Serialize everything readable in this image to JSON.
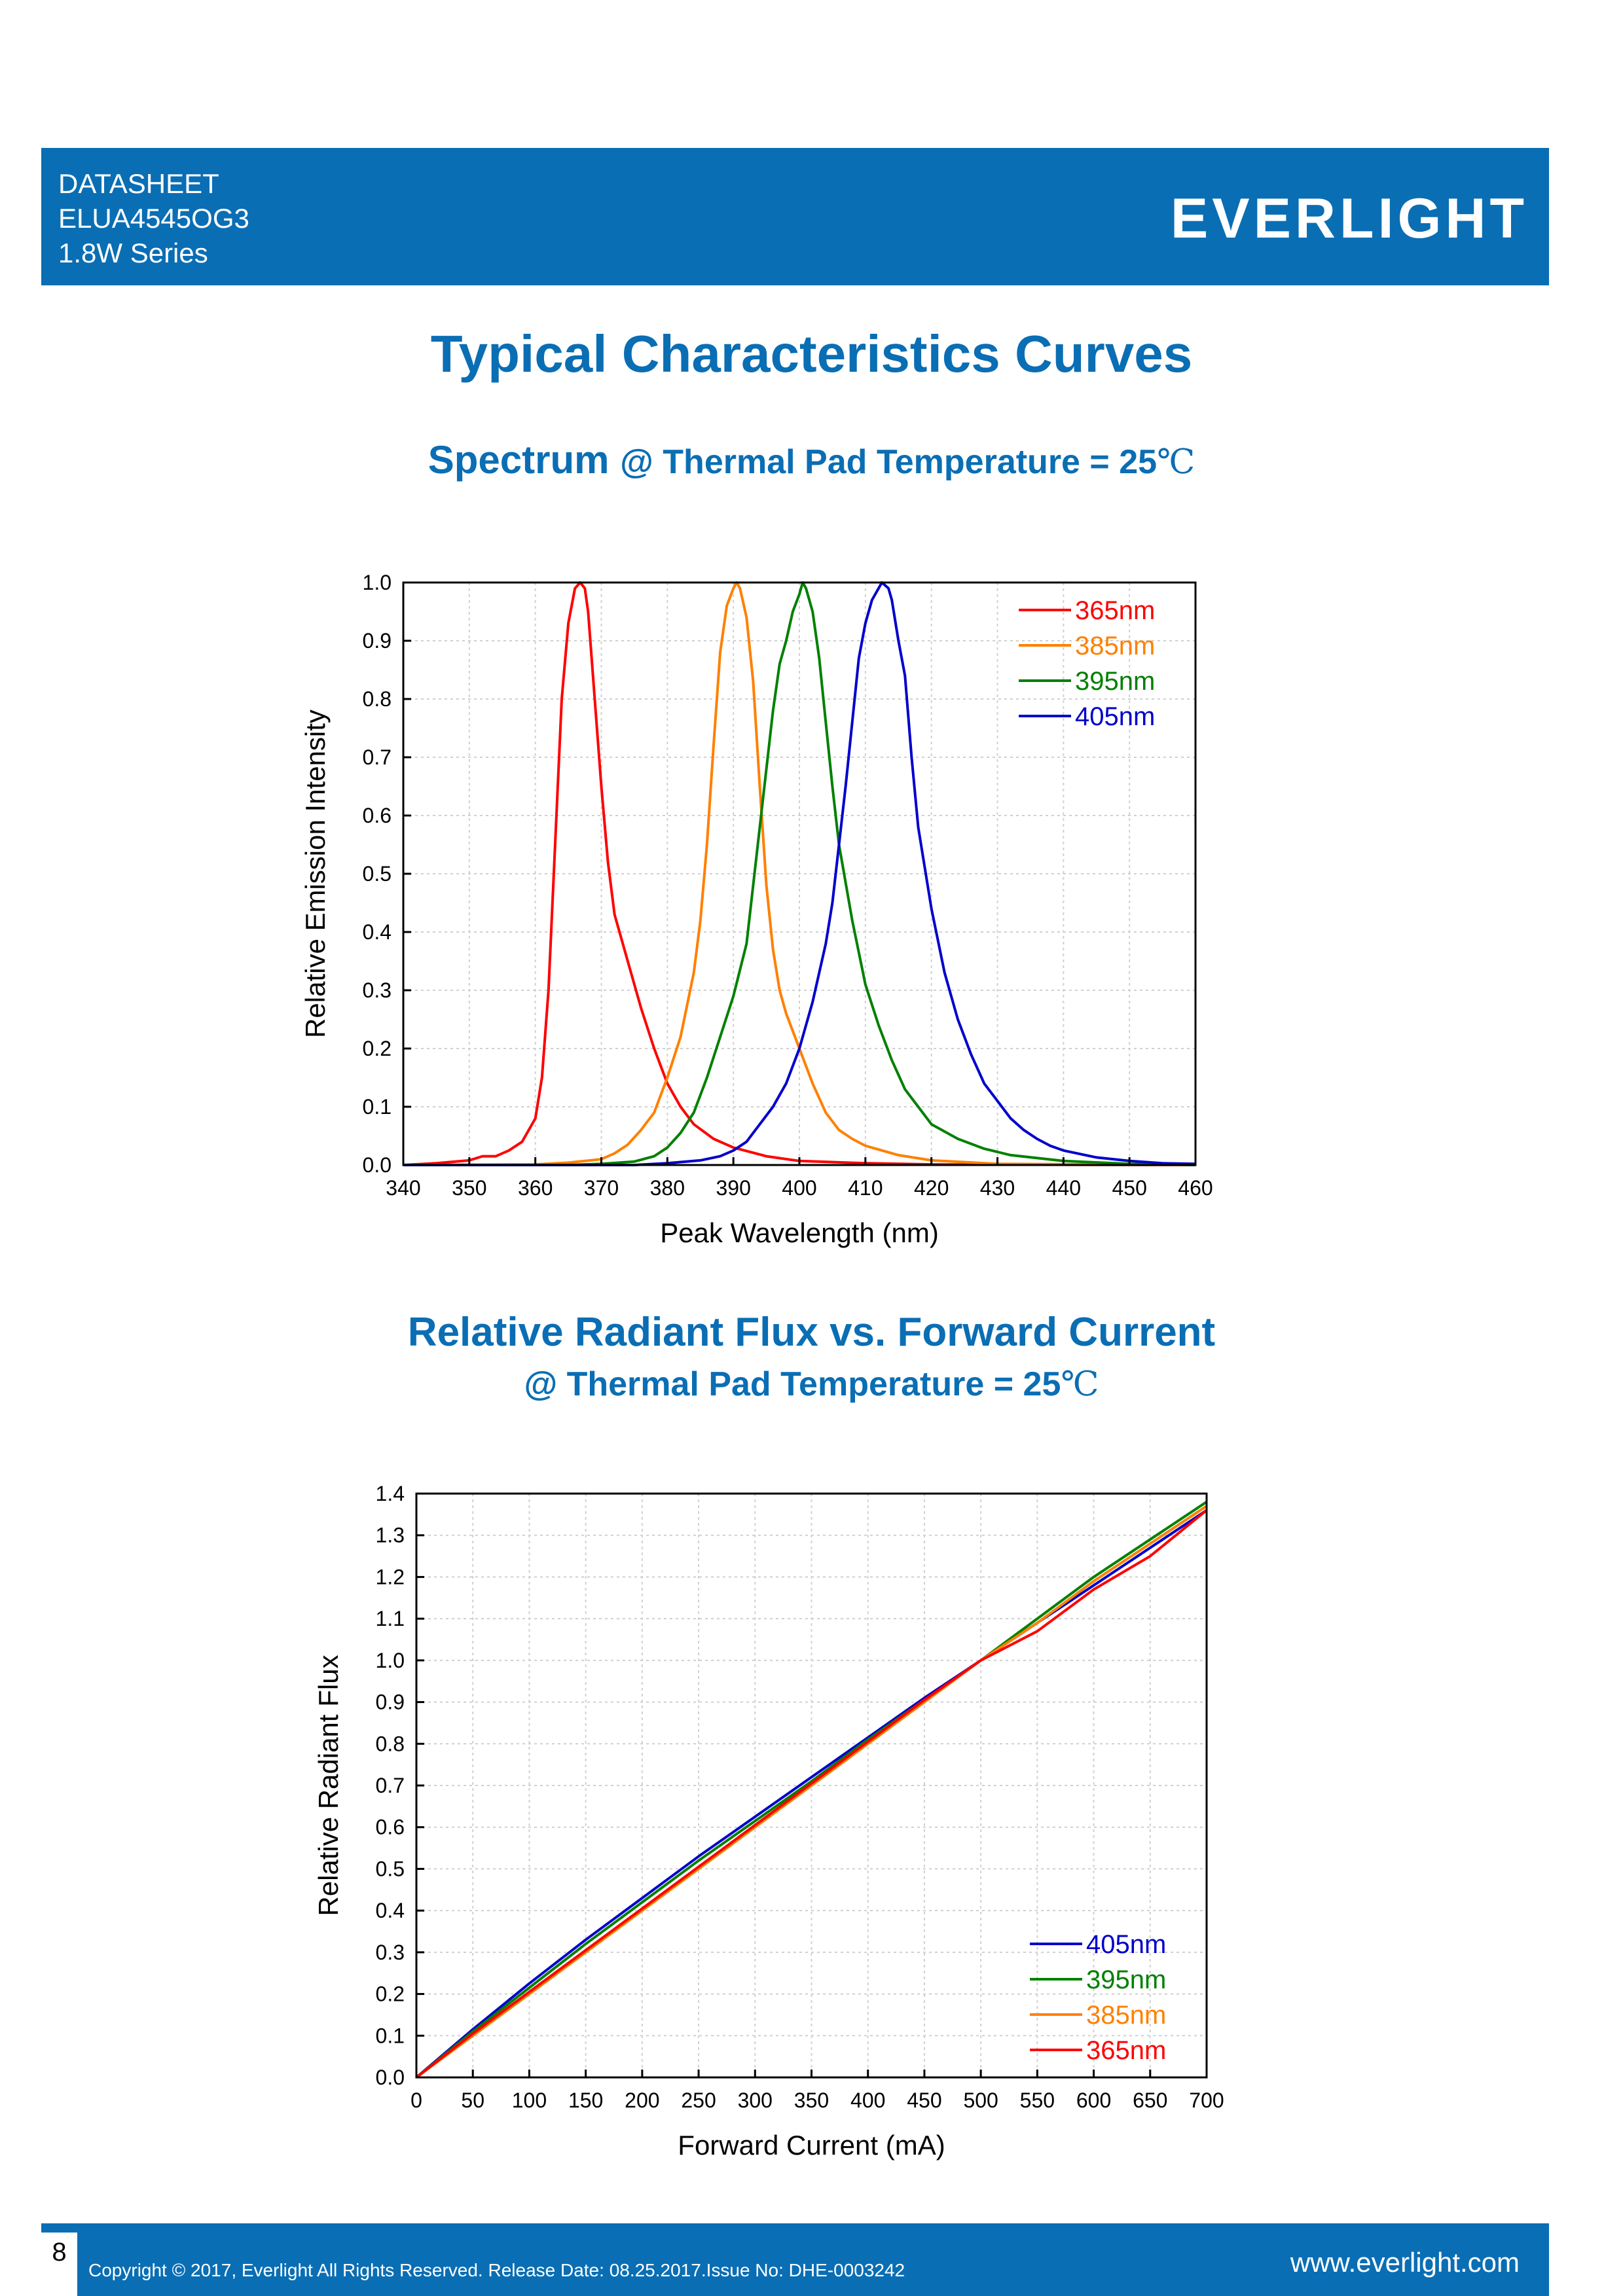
{
  "header": {
    "lines": [
      "DATASHEET",
      "ELUA4545OG3",
      "1.8W Series"
    ],
    "logo": "EVERLIGHT"
  },
  "titles": {
    "main": "Typical Characteristics Curves",
    "spectrum_main": "Spectrum",
    "spectrum_sub": "@ Thermal Pad Temperature = 25",
    "celsius": "℃",
    "flux_main": "Relative Radiant Flux vs. Forward Current",
    "flux_sub": "@ Thermal Pad Temperature = 25"
  },
  "footer": {
    "page": "8",
    "copyright": "Copyright © 2017, Everlight All Rights Reserved. Release Date: 08.25.2017.Issue No: DHE-0003242",
    "website": "www.everlight.com"
  },
  "chart_data": [
    {
      "type": "line",
      "xlabel": "Peak Wavelength (nm)",
      "ylabel": "Relative Emission Intensity",
      "xlim": [
        340,
        460
      ],
      "ylim": [
        0,
        1.0
      ],
      "xticks": [
        340,
        350,
        360,
        370,
        380,
        390,
        400,
        410,
        420,
        430,
        440,
        450,
        460
      ],
      "yticks": [
        0.0,
        0.1,
        0.2,
        0.3,
        0.4,
        0.5,
        0.6,
        0.7,
        0.8,
        0.9,
        1.0
      ],
      "grid": true,
      "legend": "top-right",
      "series": [
        {
          "name": "365nm",
          "color": "#ff0000",
          "points": [
            [
              340,
              0
            ],
            [
              345,
              0.003
            ],
            [
              350,
              0.008
            ],
            [
              352,
              0.015
            ],
            [
              354,
              0.015
            ],
            [
              356,
              0.025
            ],
            [
              358,
              0.04
            ],
            [
              360,
              0.08
            ],
            [
              361,
              0.15
            ],
            [
              362,
              0.3
            ],
            [
              363,
              0.55
            ],
            [
              364,
              0.8
            ],
            [
              365,
              0.93
            ],
            [
              366,
              0.99
            ],
            [
              366.8,
              1.0
            ],
            [
              367.5,
              0.99
            ],
            [
              368,
              0.95
            ],
            [
              369,
              0.8
            ],
            [
              370,
              0.65
            ],
            [
              371,
              0.52
            ],
            [
              372,
              0.43
            ],
            [
              374,
              0.35
            ],
            [
              376,
              0.27
            ],
            [
              378,
              0.2
            ],
            [
              380,
              0.14
            ],
            [
              382,
              0.1
            ],
            [
              384,
              0.07
            ],
            [
              387,
              0.045
            ],
            [
              390,
              0.03
            ],
            [
              395,
              0.015
            ],
            [
              400,
              0.007
            ],
            [
              410,
              0.003
            ],
            [
              420,
              0.001
            ],
            [
              460,
              0
            ]
          ]
        },
        {
          "name": "385nm",
          "color": "#ff8000",
          "points": [
            [
              340,
              0
            ],
            [
              360,
              0.001
            ],
            [
              365,
              0.004
            ],
            [
              370,
              0.01
            ],
            [
              372,
              0.02
            ],
            [
              374,
              0.035
            ],
            [
              376,
              0.06
            ],
            [
              378,
              0.09
            ],
            [
              380,
              0.15
            ],
            [
              382,
              0.22
            ],
            [
              384,
              0.33
            ],
            [
              385,
              0.42
            ],
            [
              386,
              0.55
            ],
            [
              387,
              0.72
            ],
            [
              388,
              0.88
            ],
            [
              389,
              0.96
            ],
            [
              390,
              0.99
            ],
            [
              390.5,
              1.0
            ],
            [
              391,
              0.99
            ],
            [
              392,
              0.94
            ],
            [
              393,
              0.83
            ],
            [
              394,
              0.65
            ],
            [
              395,
              0.48
            ],
            [
              396,
              0.37
            ],
            [
              397,
              0.3
            ],
            [
              398,
              0.26
            ],
            [
              400,
              0.2
            ],
            [
              402,
              0.14
            ],
            [
              404,
              0.09
            ],
            [
              406,
              0.06
            ],
            [
              408,
              0.045
            ],
            [
              410,
              0.033
            ],
            [
              415,
              0.017
            ],
            [
              420,
              0.008
            ],
            [
              430,
              0.002
            ],
            [
              460,
              0
            ]
          ]
        },
        {
          "name": "395nm",
          "color": "#008000",
          "points": [
            [
              340,
              0
            ],
            [
              365,
              0
            ],
            [
              370,
              0.002
            ],
            [
              375,
              0.006
            ],
            [
              378,
              0.015
            ],
            [
              380,
              0.03
            ],
            [
              382,
              0.055
            ],
            [
              384,
              0.09
            ],
            [
              386,
              0.15
            ],
            [
              388,
              0.22
            ],
            [
              390,
              0.29
            ],
            [
              392,
              0.38
            ],
            [
              393,
              0.48
            ],
            [
              394,
              0.58
            ],
            [
              395,
              0.68
            ],
            [
              396,
              0.78
            ],
            [
              397,
              0.86
            ],
            [
              398,
              0.9
            ],
            [
              399,
              0.95
            ],
            [
              400,
              0.98
            ],
            [
              400.5,
              1.0
            ],
            [
              401,
              0.99
            ],
            [
              402,
              0.95
            ],
            [
              403,
              0.87
            ],
            [
              404,
              0.76
            ],
            [
              405,
              0.65
            ],
            [
              406,
              0.55
            ],
            [
              408,
              0.42
            ],
            [
              410,
              0.31
            ],
            [
              412,
              0.24
            ],
            [
              414,
              0.18
            ],
            [
              416,
              0.13
            ],
            [
              418,
              0.1
            ],
            [
              420,
              0.07
            ],
            [
              424,
              0.045
            ],
            [
              428,
              0.028
            ],
            [
              432,
              0.017
            ],
            [
              440,
              0.007
            ],
            [
              450,
              0.002
            ],
            [
              460,
              0
            ]
          ]
        },
        {
          "name": "405nm",
          "color": "#0000cc",
          "points": [
            [
              340,
              0
            ],
            [
              375,
              0
            ],
            [
              380,
              0.003
            ],
            [
              385,
              0.008
            ],
            [
              388,
              0.015
            ],
            [
              390,
              0.025
            ],
            [
              392,
              0.04
            ],
            [
              394,
              0.07
            ],
            [
              396,
              0.1
            ],
            [
              398,
              0.14
            ],
            [
              400,
              0.2
            ],
            [
              402,
              0.28
            ],
            [
              404,
              0.38
            ],
            [
              405,
              0.45
            ],
            [
              406,
              0.55
            ],
            [
              407,
              0.65
            ],
            [
              408,
              0.76
            ],
            [
              409,
              0.87
            ],
            [
              410,
              0.93
            ],
            [
              411,
              0.97
            ],
            [
              412,
              0.99
            ],
            [
              412.5,
              1.0
            ],
            [
              413.5,
              0.99
            ],
            [
              414,
              0.97
            ],
            [
              415,
              0.9
            ],
            [
              416,
              0.84
            ],
            [
              417,
              0.7
            ],
            [
              418,
              0.58
            ],
            [
              420,
              0.44
            ],
            [
              422,
              0.33
            ],
            [
              424,
              0.25
            ],
            [
              426,
              0.19
            ],
            [
              428,
              0.14
            ],
            [
              430,
              0.11
            ],
            [
              432,
              0.08
            ],
            [
              434,
              0.06
            ],
            [
              436,
              0.045
            ],
            [
              438,
              0.033
            ],
            [
              440,
              0.025
            ],
            [
              445,
              0.013
            ],
            [
              450,
              0.007
            ],
            [
              455,
              0.003
            ],
            [
              460,
              0.002
            ]
          ]
        }
      ]
    },
    {
      "type": "line",
      "xlabel": "Forward Current (mA)",
      "ylabel": "Relative Radiant Flux",
      "xlim": [
        0,
        700
      ],
      "ylim": [
        0,
        1.4
      ],
      "xticks": [
        0,
        50,
        100,
        150,
        200,
        250,
        300,
        350,
        400,
        450,
        500,
        550,
        600,
        650,
        700
      ],
      "yticks": [
        0.0,
        0.1,
        0.2,
        0.3,
        0.4,
        0.5,
        0.6,
        0.7,
        0.8,
        0.9,
        1.0,
        1.1,
        1.2,
        1.3,
        1.4
      ],
      "grid": true,
      "legend": "bottom-right",
      "series": [
        {
          "name": "405nm",
          "color": "#0000cc",
          "points": [
            [
              0,
              0
            ],
            [
              50,
              0.115
            ],
            [
              100,
              0.225
            ],
            [
              150,
              0.33
            ],
            [
              200,
              0.43
            ],
            [
              250,
              0.53
            ],
            [
              300,
              0.625
            ],
            [
              350,
              0.72
            ],
            [
              400,
              0.815
            ],
            [
              450,
              0.91
            ],
            [
              500,
              1.0
            ],
            [
              550,
              1.09
            ],
            [
              600,
              1.18
            ],
            [
              650,
              1.27
            ],
            [
              700,
              1.36
            ]
          ]
        },
        {
          "name": "395nm",
          "color": "#008000",
          "points": [
            [
              0,
              0
            ],
            [
              50,
              0.11
            ],
            [
              100,
              0.215
            ],
            [
              150,
              0.32
            ],
            [
              200,
              0.42
            ],
            [
              250,
              0.52
            ],
            [
              300,
              0.615
            ],
            [
              350,
              0.71
            ],
            [
              400,
              0.81
            ],
            [
              450,
              0.905
            ],
            [
              500,
              1.0
            ],
            [
              550,
              1.1
            ],
            [
              600,
              1.2
            ],
            [
              650,
              1.29
            ],
            [
              700,
              1.38
            ]
          ]
        },
        {
          "name": "385nm",
          "color": "#ff8000",
          "points": [
            [
              0,
              0
            ],
            [
              50,
              0.1
            ],
            [
              100,
              0.2
            ],
            [
              150,
              0.3
            ],
            [
              200,
              0.4
            ],
            [
              250,
              0.5
            ],
            [
              300,
              0.6
            ],
            [
              350,
              0.7
            ],
            [
              400,
              0.8
            ],
            [
              450,
              0.9
            ],
            [
              500,
              1.0
            ],
            [
              550,
              1.09
            ],
            [
              600,
              1.19
            ],
            [
              650,
              1.28
            ],
            [
              700,
              1.37
            ]
          ]
        },
        {
          "name": "365nm",
          "color": "#ff0000",
          "points": [
            [
              0,
              0
            ],
            [
              50,
              0.105
            ],
            [
              100,
              0.205
            ],
            [
              150,
              0.305
            ],
            [
              200,
              0.405
            ],
            [
              250,
              0.505
            ],
            [
              300,
              0.605
            ],
            [
              350,
              0.705
            ],
            [
              400,
              0.805
            ],
            [
              450,
              0.905
            ],
            [
              500,
              1.0
            ],
            [
              550,
              1.07
            ],
            [
              600,
              1.17
            ],
            [
              650,
              1.25
            ],
            [
              700,
              1.36
            ]
          ]
        }
      ]
    }
  ]
}
